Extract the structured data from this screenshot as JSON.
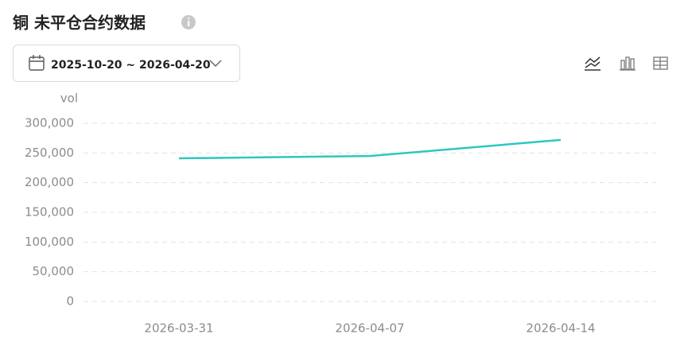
{
  "header": {
    "title": "铜 未平仓合约数据",
    "date_range": "2025-10-20 ~ 2026-04-20"
  },
  "chart_data": {
    "type": "line",
    "y_label": "vol",
    "categories": [
      "2026-03-31",
      "2026-04-07",
      "2026-04-14"
    ],
    "values": [
      241000,
      245000,
      272000
    ],
    "color": "#2ec7c0",
    "ylim": [
      0,
      300000
    ],
    "yticks": [
      0,
      {
        "value": 50000,
        "label": "50,000"
      },
      {
        "value": 100000,
        "label": "100,000"
      },
      {
        "value": 150000,
        "label": "150,000"
      },
      {
        "value": 200000,
        "label": "200,000"
      },
      {
        "value": 250000,
        "label": "250,000"
      },
      {
        "value": 300000,
        "label": "300,000"
      }
    ],
    "grid": true
  }
}
